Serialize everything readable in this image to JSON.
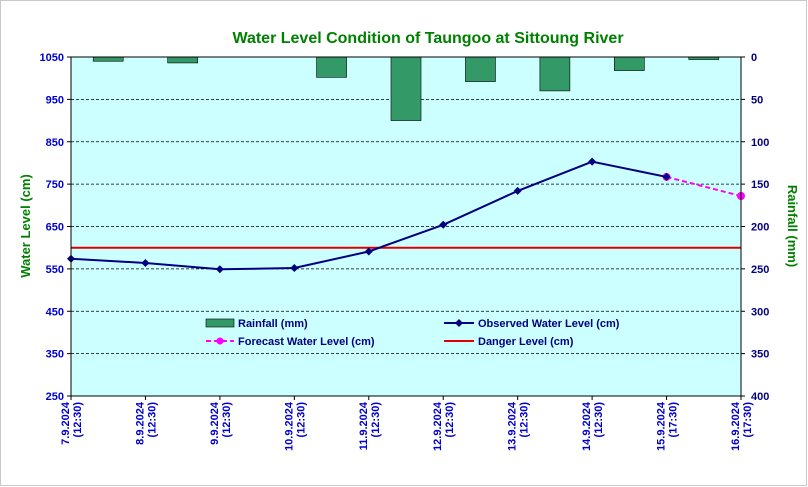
{
  "chart_data": {
    "type": "bar+line",
    "title": "Water Level Condition of Taungoo at  Sittoung River",
    "ylabel_left": "Water Level (cm)",
    "ylabel_right": "Rainfall (mm)",
    "ylim_left": [
      250,
      1050
    ],
    "yticks_left": [
      "1050",
      "950",
      "850",
      "750",
      "650",
      "550",
      "450",
      "350",
      "250"
    ],
    "ylim_right": [
      0,
      400
    ],
    "right_axis_inverted": true,
    "yticks_right": [
      "0",
      "50",
      "100",
      "150",
      "200",
      "250",
      "300",
      "350",
      "400"
    ],
    "grid": "dashed-horizontal",
    "categories": [
      [
        "7.9.2024",
        "(12:30)"
      ],
      [
        "8.9.2024",
        "(12:30)"
      ],
      [
        "9.9.2024",
        "(12:30)"
      ],
      [
        "10.9.2024",
        "(12:30)"
      ],
      [
        "11.9.2024",
        "(12:30)"
      ],
      [
        "12.9.2024",
        "(12:30)"
      ],
      [
        "13.9.2024",
        "(12:30)"
      ],
      [
        "14.9.2024",
        "(12:30)"
      ],
      [
        "15.9.2024",
        "(17:30)"
      ],
      [
        "16.9.2024",
        "(17:30)"
      ]
    ],
    "rainfall": [
      5,
      7,
      0,
      24,
      75,
      29,
      40,
      16,
      3,
      null
    ],
    "observed": [
      574,
      564,
      549,
      552,
      591,
      654,
      734,
      803,
      767,
      null
    ],
    "forecast": [
      null,
      null,
      null,
      null,
      null,
      null,
      null,
      null,
      767,
      722
    ],
    "danger_level": 600,
    "legend": {
      "rainfall": "Rainfall (mm)",
      "observed": "Observed Water Level (cm)",
      "forecast": "Forecast Water Level (cm)",
      "danger": "Danger Level (cm)"
    },
    "colors": {
      "rainfall_fill": "#339966",
      "observed": "#000080",
      "forecast": "#ff00ff",
      "danger": "#e00000",
      "plot_bg": "#ccffff",
      "title": "#008000",
      "axis_text": "#0000cc",
      "right_axis_text": "#000080"
    }
  }
}
